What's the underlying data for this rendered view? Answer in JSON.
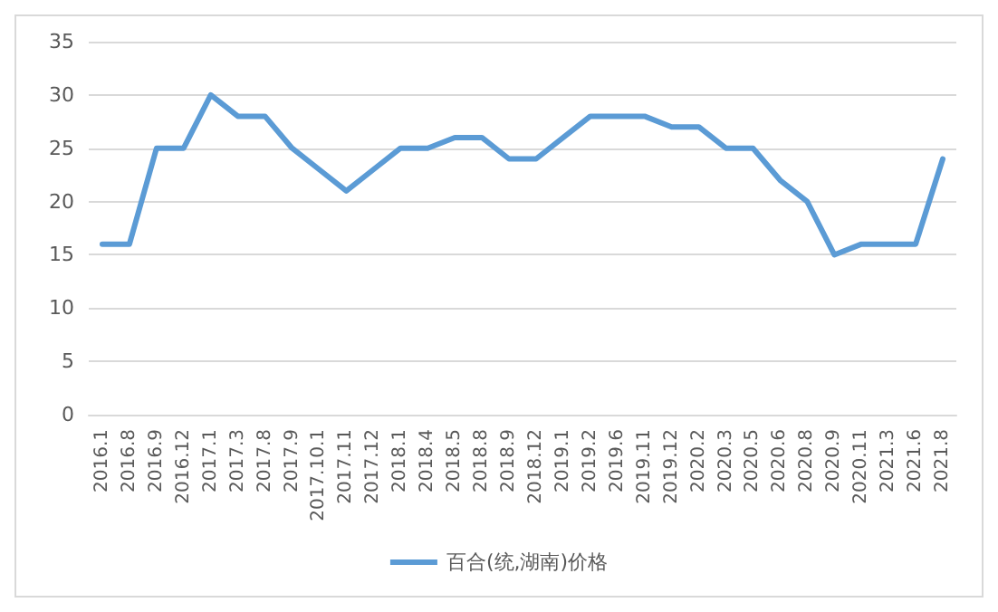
{
  "chart_data": {
    "type": "line",
    "categories": [
      "2016.1",
      "2016.8",
      "2016.9",
      "2016.12",
      "2017.1",
      "2017.3",
      "2017.8",
      "2017.9",
      "2017.10.1",
      "2017.11",
      "2017.12",
      "2018.1",
      "2018.4",
      "2018.5",
      "2018.8",
      "2018.9",
      "2018.12",
      "2019.1",
      "2019.2",
      "2019.6",
      "2019.11",
      "2019.12",
      "2020.2",
      "2020.3",
      "2020.5",
      "2020.6",
      "2020.8",
      "2020.9",
      "2020.11",
      "2021.3",
      "2021.6",
      "2021.8"
    ],
    "series": [
      {
        "name": "百合(统,湖南)价格",
        "color": "#5b9bd5",
        "values": [
          16,
          16,
          25,
          25,
          30,
          28,
          28,
          25,
          23,
          21,
          23,
          25,
          25,
          26,
          26,
          24,
          24,
          26,
          28,
          28,
          28,
          27,
          27,
          25,
          25,
          22,
          20,
          15,
          16,
          16,
          16,
          24
        ]
      }
    ],
    "ylim": [
      0,
      35
    ],
    "yticks": [
      0,
      5,
      10,
      15,
      20,
      25,
      30,
      35
    ],
    "grid": "y",
    "legend": "bottom",
    "marker": "none",
    "line_style": "solid"
  }
}
